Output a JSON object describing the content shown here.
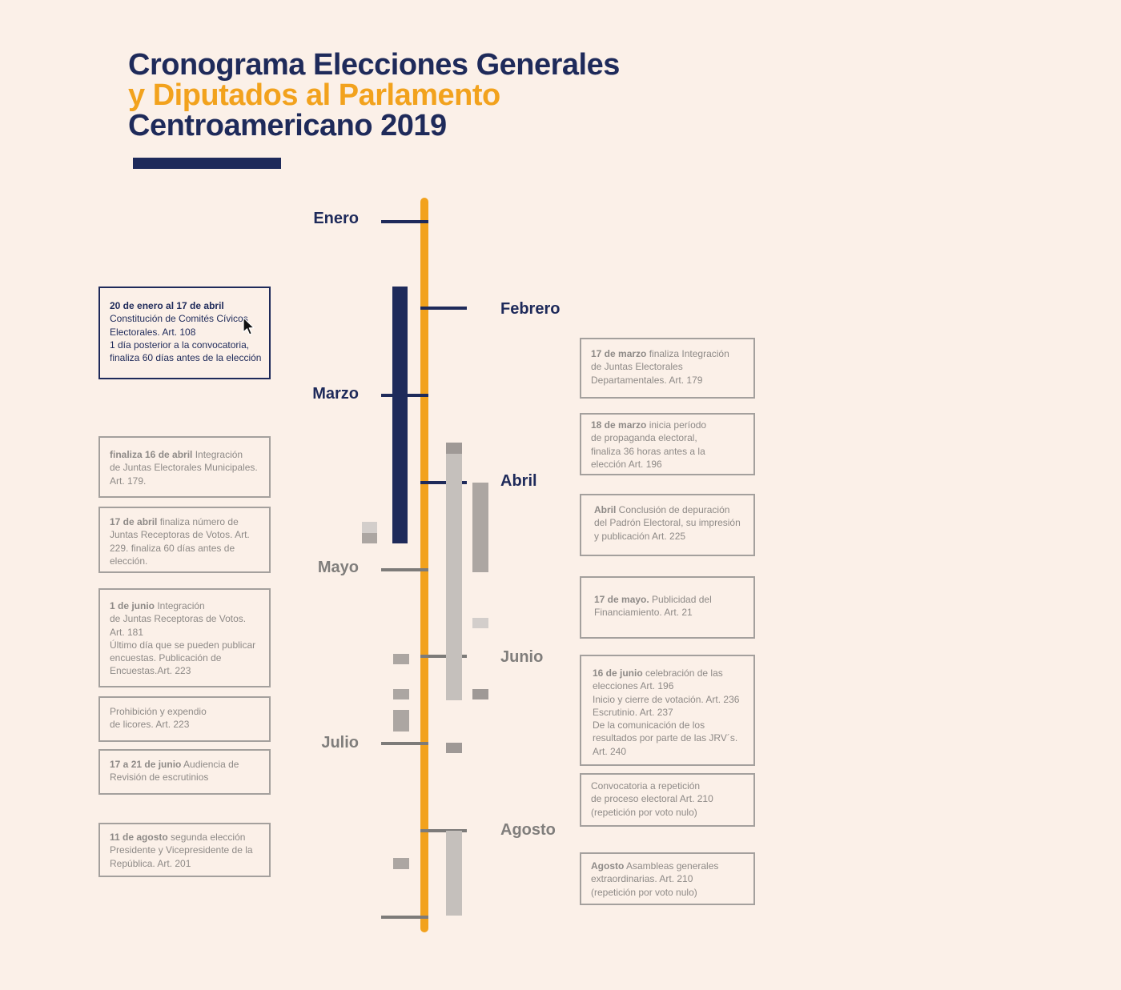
{
  "title": {
    "line1": "Cronograma Elecciones Generales",
    "line2": "y Diputados al Parlamento",
    "line3": "Centroamericano 2019"
  },
  "colors": {
    "navy": "#1e2a5a",
    "orange": "#f2a21d",
    "grey": "#807e7c",
    "background": "#fbf0e8"
  },
  "months": [
    "Enero",
    "Febrero",
    "Marzo",
    "Abril",
    "Mayo",
    "Junio",
    "Julio",
    "Agosto"
  ],
  "events_left": [
    {
      "bold": "20 de enero al 17 de abril",
      "text": "Constitución de Comités Cívicos Electorales. Art. 108 1 día posterior a la convocatoria, finaliza 60 días antes de la elección",
      "lines": [
        "",
        "Constitución de Comités Cívicos",
        "Electorales. Art. 108",
        "1 día posterior a la convocatoria,",
        "finaliza 60 días antes de la elección"
      ]
    },
    {
      "bold": "finaliza 16 de abril",
      "lines": [
        " Integración",
        "de Juntas Electorales Municipales.",
        "Art. 179."
      ]
    },
    {
      "bold": "17 de abril",
      "lines": [
        " finaliza número de",
        "Juntas Receptoras de Votos. Art.",
        "229. finaliza 60 días antes de",
        "elección."
      ]
    },
    {
      "bold": "1 de junio",
      "lines": [
        " Integración",
        "de Juntas Receptoras de Votos.",
        "Art. 181",
        "Último día que se pueden publicar",
        "encuestas. Publicación de",
        "Encuestas.Art. 223"
      ]
    },
    {
      "bold": "",
      "lines": [
        "Prohibición y expendio",
        "de licores. Art. 223"
      ]
    },
    {
      "bold": "17 a 21 de junio",
      "lines": [
        " Audiencia de",
        "Revisión de escrutinios"
      ]
    },
    {
      "bold": "11 de agosto",
      "lines": [
        " segunda elección",
        "Presidente y Vicepresidente de la",
        "República. Art. 201"
      ]
    }
  ],
  "events_right": [
    {
      "bold": "17 de marzo",
      "lines": [
        " finaliza Integración",
        "de Juntas Electorales",
        "Departamentales. Art. 179"
      ]
    },
    {
      "bold": "18 de marzo",
      "lines": [
        " inicia período",
        "de propaganda electoral,",
        "finaliza 36 horas antes a la",
        "elección Art. 196"
      ]
    },
    {
      "bold": "Abril",
      "lines": [
        " Conclusión de depuración",
        "del Padrón Electoral, su impresión",
        "y publicación Art. 225"
      ]
    },
    {
      "bold": "17 de mayo.",
      "lines": [
        " Publicidad del",
        "Financiamiento. Art. 21"
      ]
    },
    {
      "bold": "16 de junio",
      "lines": [
        " celebración de las",
        "elecciones Art. 196",
        "Inicio y cierre de votación. Art. 236",
        "Escrutinio. Art. 237",
        "De la comunicación de los",
        "resultados por parte de las JRV´s.",
        "Art. 240"
      ]
    },
    {
      "bold": "",
      "lines": [
        "Convocatoria a repetición",
        "de proceso electoral Art. 210",
        "(repetición por voto nulo)"
      ]
    },
    {
      "bold": "Agosto",
      "lines": [
        " Asambleas generales",
        "extraordinarias. Art. 210",
        "(repetición por voto nulo)"
      ]
    }
  ]
}
